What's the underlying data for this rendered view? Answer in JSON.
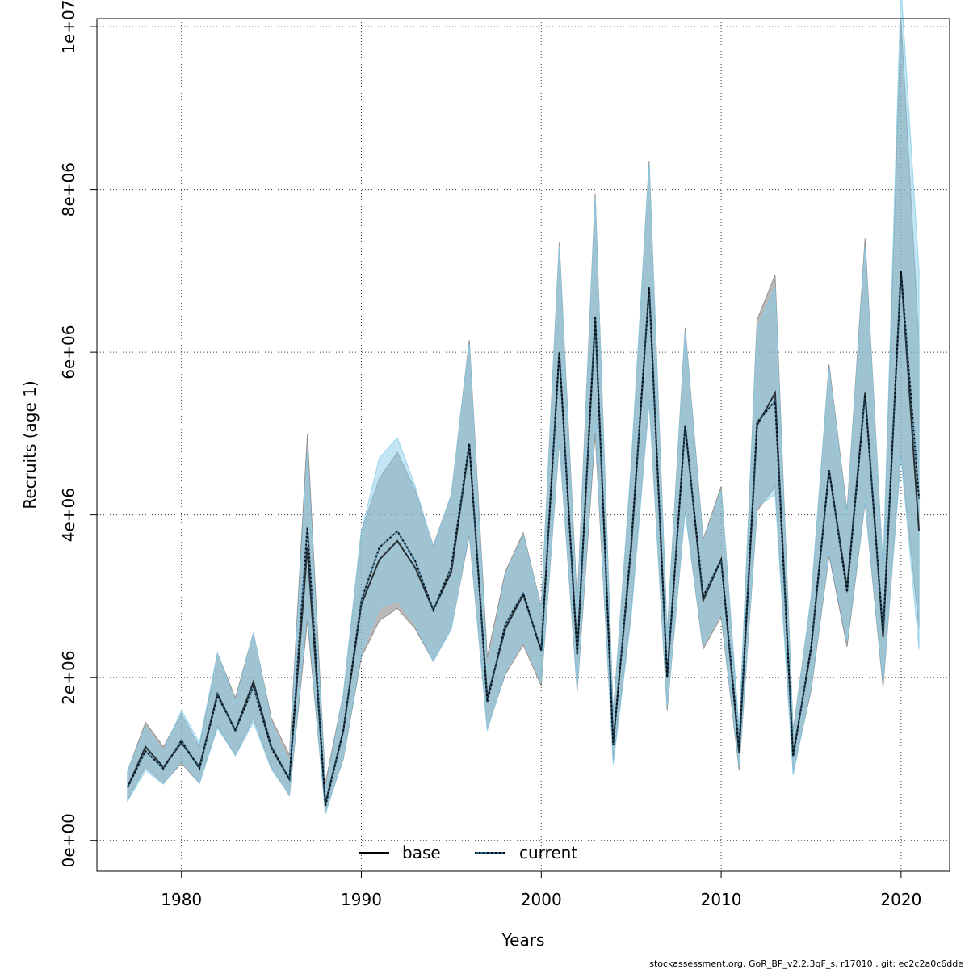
{
  "chart_data": {
    "type": "line",
    "xlabel": "Years",
    "ylabel": "Recruits (age 1)",
    "xlim": [
      1975.3,
      2022.7
    ],
    "ylim": [
      -380000,
      10100000
    ],
    "x_ticks": [
      1980,
      1990,
      2000,
      2010,
      2020
    ],
    "y_ticks": [
      {
        "value": 0,
        "label": "0e+00"
      },
      {
        "value": 2000000,
        "label": "2e+06"
      },
      {
        "value": 4000000,
        "label": "4e+06"
      },
      {
        "value": 6000000,
        "label": "6e+06"
      },
      {
        "value": 8000000,
        "label": "8e+06"
      },
      {
        "value": 10000000,
        "label": "1e+07"
      }
    ],
    "grid": true,
    "legend_position": "bottom-center",
    "colors": {
      "base_line": "#000000",
      "base_band": "#808080",
      "current_line": "#1f5f8a",
      "current_band": "#87ceeb"
    },
    "x": [
      1977,
      1978,
      1979,
      1980,
      1981,
      1982,
      1983,
      1984,
      1985,
      1986,
      1987,
      1988,
      1989,
      1990,
      1991,
      1992,
      1993,
      1994,
      1995,
      1996,
      1997,
      1998,
      1999,
      2000,
      2001,
      2002,
      2003,
      2004,
      2005,
      2006,
      2007,
      2008,
      2009,
      2010,
      2011,
      2012,
      2013,
      2014,
      2015,
      2016,
      2017,
      2018,
      2019,
      2020,
      2021
    ],
    "series": [
      {
        "name": "base",
        "style": "solid",
        "values": [
          650000,
          1150000,
          900000,
          1200000,
          900000,
          1800000,
          1350000,
          1950000,
          1150000,
          750000,
          3600000,
          450000,
          1350000,
          2900000,
          3450000,
          3680000,
          3350000,
          2830000,
          3300000,
          4850000,
          1750000,
          2600000,
          3020000,
          2330000,
          6000000,
          2300000,
          6400000,
          1200000,
          3600000,
          6800000,
          2000000,
          5100000,
          2950000,
          3450000,
          1070000,
          5100000,
          5500000,
          1050000,
          2350000,
          4550000,
          3100000,
          5500000,
          2500000,
          7000000,
          3800000
        ],
        "lower": [
          500000,
          900000,
          700000,
          950000,
          700000,
          1400000,
          1050000,
          1500000,
          900000,
          550000,
          2700000,
          340000,
          1000000,
          2250000,
          2700000,
          2850000,
          2600000,
          2200000,
          2600000,
          3750000,
          1370000,
          2040000,
          2400000,
          1900000,
          4900000,
          1830000,
          5000000,
          960000,
          2800000,
          5400000,
          1600000,
          4050000,
          2350000,
          2750000,
          870000,
          4050000,
          4350000,
          830000,
          1850000,
          3500000,
          2380000,
          4150000,
          1880000,
          4750000,
          2600000
        ],
        "upper": [
          850000,
          1450000,
          1150000,
          1550000,
          1150000,
          2300000,
          1750000,
          2550000,
          1500000,
          1050000,
          5000000,
          700000,
          1800000,
          3800000,
          4450000,
          4770000,
          4300000,
          3620000,
          4250000,
          6150000,
          2250000,
          3300000,
          3780000,
          2870000,
          7350000,
          2900000,
          7950000,
          1550000,
          4600000,
          8350000,
          2550000,
          6300000,
          3700000,
          4350000,
          1330000,
          6400000,
          6950000,
          1340000,
          2980000,
          5850000,
          4050000,
          7400000,
          3330000,
          10100000,
          6100000
        ]
      },
      {
        "name": "current",
        "style": "dotted",
        "values": [
          650000,
          1100000,
          880000,
          1230000,
          880000,
          1780000,
          1350000,
          1890000,
          1130000,
          750000,
          3850000,
          420000,
          1350000,
          2950000,
          3600000,
          3800000,
          3430000,
          2830000,
          3360000,
          4880000,
          1700000,
          2650000,
          3040000,
          2330000,
          6000000,
          2280000,
          6440000,
          1170000,
          3650000,
          6780000,
          2000000,
          5100000,
          3000000,
          3450000,
          1140000,
          5140000,
          5400000,
          1030000,
          2380000,
          4550000,
          3050000,
          5480000,
          2560000,
          7000000,
          4200000
        ],
        "lower": [
          480000,
          860000,
          690000,
          980000,
          700000,
          1380000,
          1040000,
          1450000,
          870000,
          560000,
          2850000,
          320000,
          1020000,
          2300000,
          2850000,
          2950000,
          2650000,
          2200000,
          2600000,
          3800000,
          1350000,
          2070000,
          2450000,
          1950000,
          4920000,
          1870000,
          5150000,
          930000,
          2750000,
          5400000,
          1650000,
          4050000,
          2400000,
          2800000,
          920000,
          4100000,
          4250000,
          800000,
          1900000,
          3550000,
          2450000,
          4180000,
          1950000,
          4700000,
          2350000
        ],
        "upper": [
          850000,
          1400000,
          1100000,
          1600000,
          1200000,
          2300000,
          1700000,
          2550000,
          1450000,
          950000,
          4800000,
          600000,
          1800000,
          3800000,
          4700000,
          4950000,
          4350000,
          3600000,
          4250000,
          6100000,
          2100000,
          3250000,
          3750000,
          2850000,
          7300000,
          2800000,
          7900000,
          1500000,
          4650000,
          8300000,
          2500000,
          6250000,
          3650000,
          4300000,
          1380000,
          6300000,
          6800000,
          1300000,
          3000000,
          5800000,
          4000000,
          7300000,
          3300000,
          10500000,
          7000000
        ]
      }
    ],
    "footer": "stockassessment.org, GoR_BP_v2.2.3qF_s, r17010 , git: ec2c2a0c6dde"
  }
}
